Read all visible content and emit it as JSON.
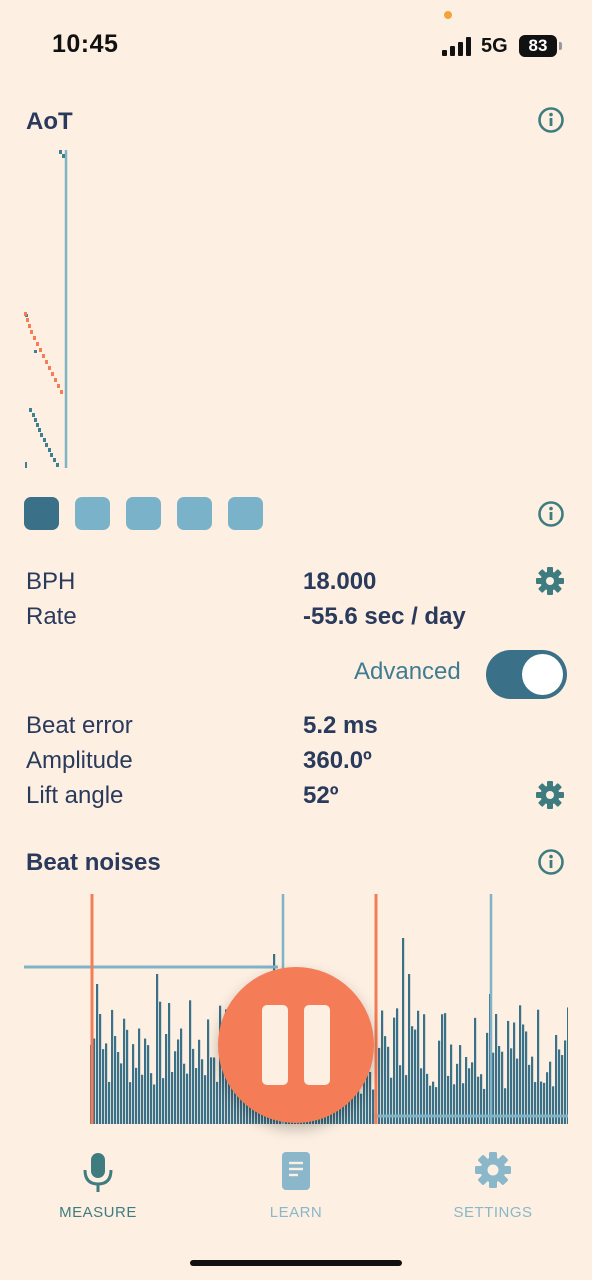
{
  "status_bar": {
    "time": "10:45",
    "network": "5G",
    "battery": "83"
  },
  "aot": {
    "title": "AoT",
    "icons": {
      "info": "info-icon"
    },
    "colors": {
      "teal": "#3f7f8f",
      "orange": "#f47c56",
      "line": "#7fb3c8"
    }
  },
  "pages": {
    "count": 5,
    "active_index": 0
  },
  "readings": {
    "bph_label": "BPH",
    "bph_value": "18.000",
    "rate_label": "Rate",
    "rate_value": "-55.6 sec / day",
    "advanced_label": "Advanced",
    "advanced_on": true,
    "beat_error_label": "Beat error",
    "beat_error_value": "5.2 ms",
    "amplitude_label": "Amplitude",
    "amplitude_value": "360.0º",
    "lift_angle_label": "Lift angle",
    "lift_angle_value": "52º"
  },
  "beat_noises": {
    "title": "Beat noises",
    "bar_color": "#3a7088"
  },
  "controls": {
    "play_state": "playing",
    "button_icon": "pause-icon",
    "button_color": "#f47c56"
  },
  "tabs": [
    {
      "label": "MEASURE",
      "icon": "microphone-icon",
      "active": true
    },
    {
      "label": "LEARN",
      "icon": "book-icon",
      "active": false
    },
    {
      "label": "SETTINGS",
      "icon": "gear-icon",
      "active": false
    }
  ],
  "colors": {
    "background": "#fdf0e2",
    "text": "#2a3a5c",
    "accent": "#3a7088",
    "inactive_tab": "#8ab7c9"
  }
}
